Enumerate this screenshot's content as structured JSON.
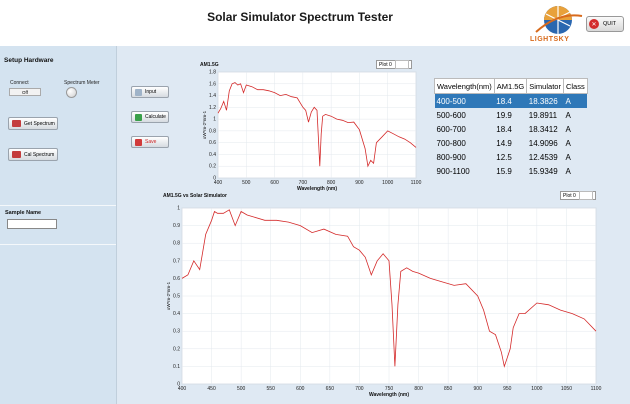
{
  "app": {
    "title": "Solar Simulator Spectrum Tester",
    "quit_label": "QUIT",
    "logo_text": "LIGHTSKY"
  },
  "sidebar": {
    "setup_title": "Setup Hardware",
    "connect_label": "Connect",
    "connect_state": "Off",
    "spectrum_meter_label": "Spectrum Meter",
    "get_spectrum_label": "Get Spectrum",
    "cal_spectrum_label": "Cal Spectrum",
    "sample_name_label": "Sample Name",
    "sample_name_value": ""
  },
  "actions": {
    "input_label": "Input",
    "calculate_label": "Calculate",
    "save_label": "Save"
  },
  "top_chart": {
    "title": "AM1.5G",
    "plot_legend": "Plot 0",
    "xlabel": "Wavelength (nm)",
    "ylabel": "uW*m-2*nm-1",
    "xticks": [
      "400",
      "500",
      "600",
      "700",
      "800",
      "900",
      "1000",
      "1100"
    ],
    "yticks": [
      "0",
      "0.2",
      "0.4",
      "0.6",
      "0.8",
      "1",
      "1.2",
      "1.4",
      "1.6",
      "1.8"
    ]
  },
  "bottom_chart": {
    "title": "AM1.5G vs Solar Simulator",
    "plot_legend": "Plot 0",
    "xlabel": "Wavelength (nm)",
    "ylabel": "uW*m-2*nm-1",
    "xticks": [
      "400",
      "450",
      "500",
      "550",
      "600",
      "650",
      "700",
      "750",
      "800",
      "850",
      "900",
      "950",
      "1000",
      "1050",
      "1100"
    ],
    "yticks": [
      "0",
      "0.1",
      "0.2",
      "0.3",
      "0.4",
      "0.5",
      "0.6",
      "0.7",
      "0.8",
      "0.9",
      "1"
    ]
  },
  "table": {
    "headers": [
      "Wavelength(nm)",
      "AM1.5G",
      "Simulator",
      "Class"
    ],
    "rows": [
      [
        "400-500",
        "18.4",
        "18.3826",
        "A"
      ],
      [
        "500-600",
        "19.9",
        "19.8911",
        "A"
      ],
      [
        "600-700",
        "18.4",
        "18.3412",
        "A"
      ],
      [
        "700-800",
        "14.9",
        "14.9096",
        "A"
      ],
      [
        "800-900",
        "12.5",
        "12.4539",
        "A"
      ],
      [
        "900-1100",
        "15.9",
        "15.9349",
        "A"
      ]
    ],
    "selected_row": 0
  },
  "chart_data": [
    {
      "type": "line",
      "title": "AM1.5G",
      "xlabel": "Wavelength (nm)",
      "ylabel": "uW*m-2*nm-1",
      "xlim": [
        400,
        1100
      ],
      "ylim": [
        0,
        1.8
      ],
      "series": [
        {
          "name": "Plot 0",
          "color": "#d42a2a",
          "x": [
            400,
            410,
            420,
            430,
            440,
            450,
            460,
            470,
            480,
            490,
            500,
            520,
            540,
            560,
            580,
            600,
            620,
            640,
            660,
            680,
            700,
            710,
            720,
            730,
            740,
            750,
            760,
            765,
            770,
            780,
            800,
            820,
            840,
            860,
            880,
            900,
            920,
            930,
            940,
            950,
            960,
            980,
            1000,
            1020,
            1040,
            1060,
            1080,
            1100
          ],
          "y": [
            1.1,
            1.18,
            1.3,
            1.15,
            1.48,
            1.6,
            1.62,
            1.58,
            1.6,
            1.45,
            1.58,
            1.55,
            1.5,
            1.5,
            1.48,
            1.45,
            1.4,
            1.42,
            1.38,
            1.36,
            1.2,
            1.15,
            0.95,
            1.12,
            1.2,
            1.15,
            0.2,
            0.75,
            1.05,
            1.08,
            1.05,
            1.0,
            0.98,
            0.94,
            0.95,
            0.82,
            0.5,
            0.2,
            0.3,
            0.25,
            0.6,
            0.7,
            0.8,
            0.75,
            0.7,
            0.66,
            0.6,
            0.52
          ]
        }
      ]
    },
    {
      "type": "line",
      "title": "AM1.5G vs Solar Simulator",
      "xlabel": "Wavelength (nm)",
      "ylabel": "uW*m-2*nm-1",
      "xlim": [
        400,
        1100
      ],
      "ylim": [
        0,
        1
      ],
      "series": [
        {
          "name": "Plot 0",
          "color": "#d42a2a",
          "x": [
            400,
            410,
            420,
            430,
            440,
            450,
            455,
            460,
            470,
            480,
            490,
            500,
            510,
            520,
            540,
            560,
            580,
            600,
            620,
            640,
            660,
            680,
            690,
            700,
            710,
            720,
            730,
            740,
            750,
            755,
            760,
            765,
            770,
            780,
            790,
            800,
            820,
            840,
            860,
            880,
            900,
            910,
            920,
            930,
            940,
            945,
            950,
            955,
            960,
            970,
            980,
            1000,
            1020,
            1040,
            1060,
            1080,
            1100
          ],
          "y": [
            0.6,
            0.62,
            0.7,
            0.65,
            0.85,
            0.93,
            0.98,
            0.97,
            0.97,
            0.99,
            0.9,
            0.98,
            0.96,
            0.95,
            0.93,
            0.93,
            0.92,
            0.9,
            0.86,
            0.88,
            0.85,
            0.84,
            0.78,
            0.76,
            0.72,
            0.62,
            0.7,
            0.74,
            0.7,
            0.45,
            0.1,
            0.45,
            0.64,
            0.66,
            0.64,
            0.63,
            0.6,
            0.58,
            0.56,
            0.57,
            0.5,
            0.42,
            0.3,
            0.28,
            0.18,
            0.1,
            0.15,
            0.2,
            0.32,
            0.4,
            0.4,
            0.46,
            0.45,
            0.42,
            0.4,
            0.37,
            0.3
          ]
        }
      ]
    }
  ]
}
